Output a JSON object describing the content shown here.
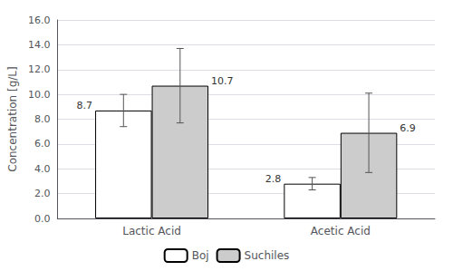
{
  "chart_data": {
    "type": "bar",
    "categories": [
      "Lactic Acid",
      "Acetic Acid"
    ],
    "series": [
      {
        "name": "Boj",
        "color": "#ffffff",
        "values": [
          8.7,
          2.8
        ],
        "errors": [
          1.3,
          0.5
        ]
      },
      {
        "name": "Suchiles",
        "color": "#cccccc",
        "values": [
          10.7,
          6.9
        ],
        "errors": [
          3.0,
          3.2
        ]
      }
    ],
    "ylabel": "Concentration [g/L]",
    "ylim": [
      0,
      16.0
    ],
    "yticks": [
      {
        "value": 0.0,
        "label": "0.0"
      },
      {
        "value": 2.0,
        "label": "2.0"
      },
      {
        "value": 4.0,
        "label": "4.0"
      },
      {
        "value": 6.0,
        "label": "6.0"
      },
      {
        "value": 8.0,
        "label": "8.0"
      },
      {
        "value": 10.0,
        "label": "10.0"
      },
      {
        "value": 12.0,
        "label": "12.0"
      },
      {
        "value": 14.0,
        "label": "14.0"
      },
      {
        "value": 16.0,
        "label": "16.0"
      }
    ],
    "grid": true,
    "legend": "bottom",
    "data_labels": true
  }
}
